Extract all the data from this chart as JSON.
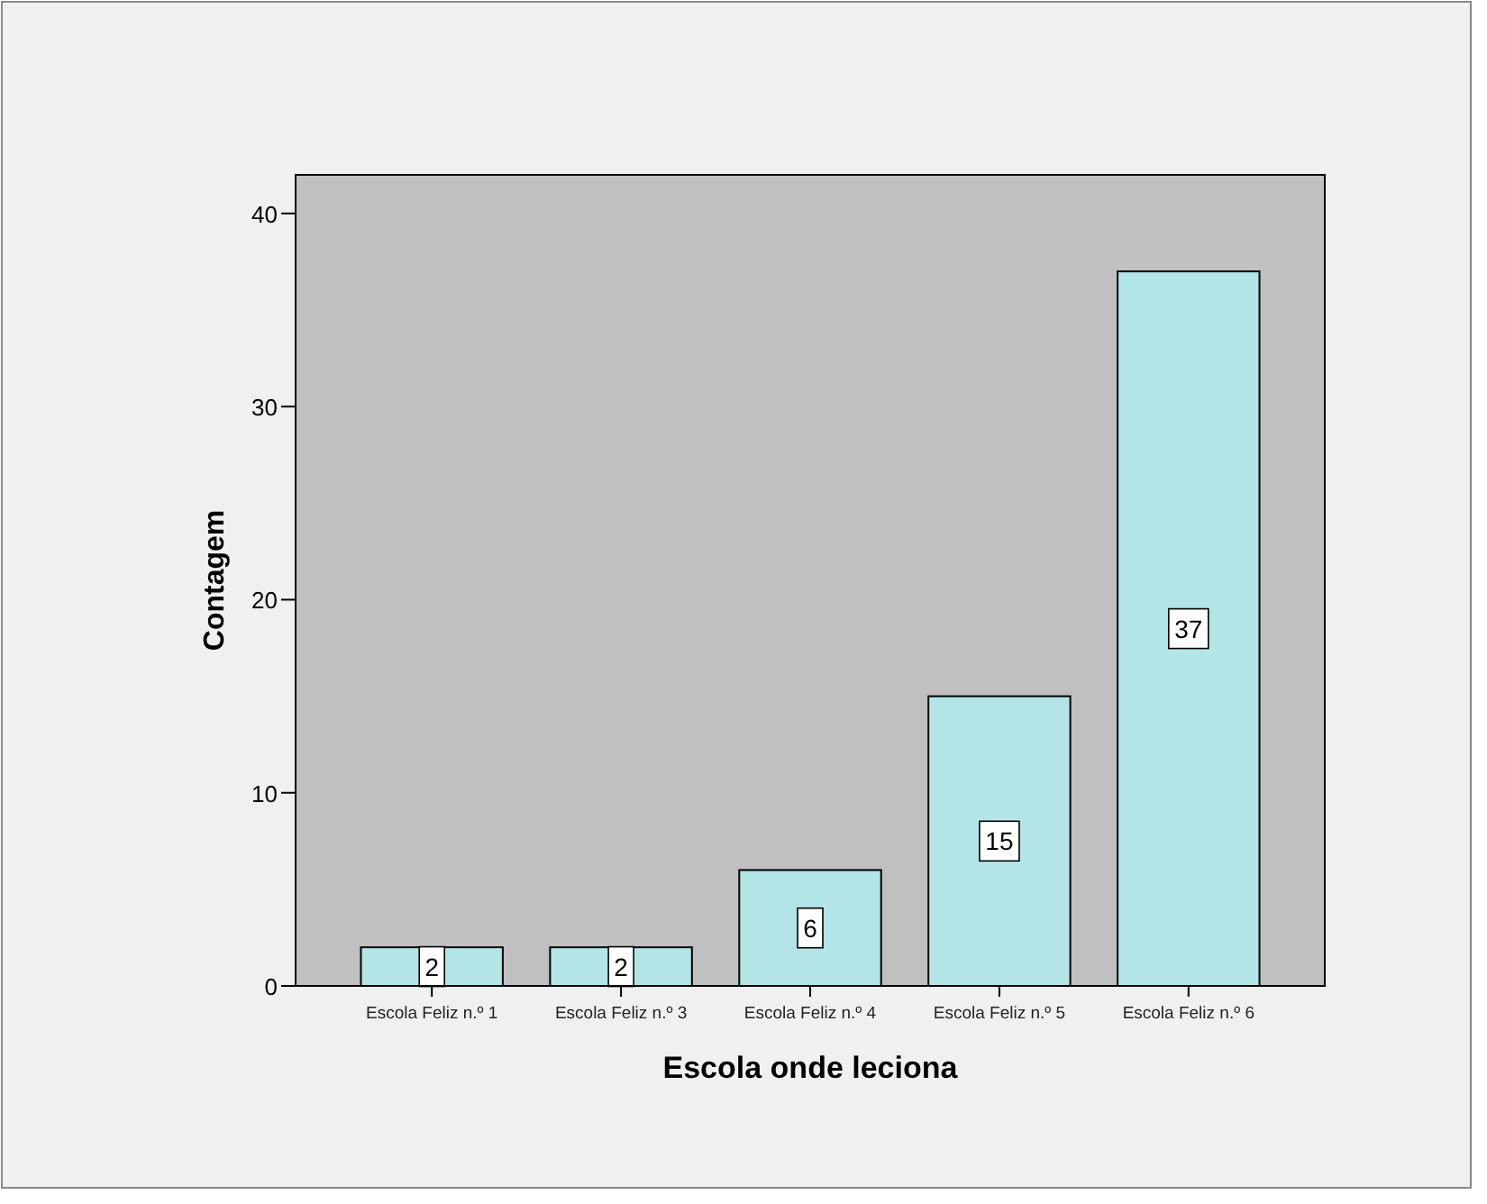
{
  "chart_data": {
    "type": "bar",
    "xlabel": "Escola onde leciona",
    "ylabel": "Contagem",
    "categories": [
      "Escola Feliz n.º 1",
      "Escola Feliz n.º 3",
      "Escola Feliz n.º 4",
      "Escola Feliz n.º 5",
      "Escola Feliz n.º 6"
    ],
    "values": [
      2,
      2,
      6,
      15,
      37
    ],
    "color": "#b3e5e6",
    "data_labels": true,
    "ylim": [
      0,
      42
    ],
    "yticks": [
      0,
      10,
      20,
      30,
      40
    ]
  }
}
